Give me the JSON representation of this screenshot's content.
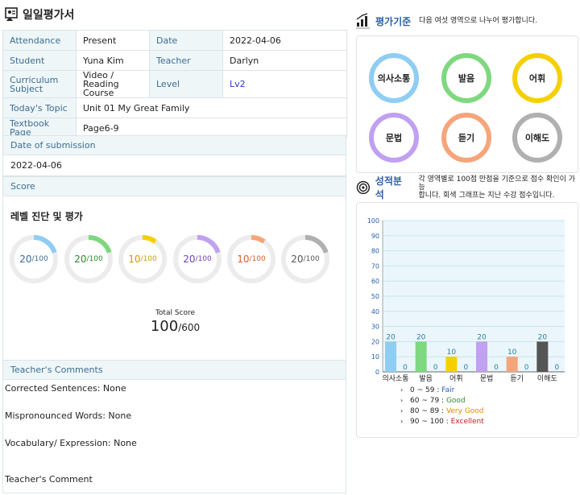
{
  "page_title": "일일평가서",
  "info": {
    "attendance_label": "Attendance",
    "attendance_value": "Present",
    "date_label": "Date",
    "date_value": "2022-04-06",
    "student_label": "Student",
    "student_value": "Yuna Kim",
    "teacher_label": "Teacher",
    "teacher_value": "Darlyn",
    "subject_label_1": "Curriculum",
    "subject_label_2": "Subject",
    "subject_value_1": "Video / Reading",
    "subject_value_2": "Course",
    "level_label": "Level",
    "level_value": "Lv2",
    "topic_label": "Today's Topic",
    "topic_value": "Unit 01 My Great Family",
    "textbook_label": "Textbook Page",
    "textbook_value": "Page6-9"
  },
  "submission": {
    "label": "Date of submission",
    "value": "2022-04-06"
  },
  "score": {
    "label": "Score",
    "title": "레벨 진단 및 평가",
    "donuts": [
      {
        "value": 20,
        "max": "/100",
        "color": "#8fcdf3",
        "text_color": "#3d6d92"
      },
      {
        "value": 20,
        "max": "/100",
        "color": "#7fd87f",
        "text_color": "#2f8a2f"
      },
      {
        "value": 10,
        "max": "/100",
        "color": "#f5d000",
        "text_color": "#d09a00"
      },
      {
        "value": 20,
        "max": "/100",
        "color": "#c0a0f0",
        "text_color": "#6a42b8"
      },
      {
        "value": 10,
        "max": "/100",
        "color": "#f5a57a",
        "text_color": "#d06030"
      },
      {
        "value": 20,
        "max": "/100",
        "color": "#b0b0b0",
        "text_color": "#555555"
      }
    ],
    "total_label": "Total Score",
    "total_value": "100",
    "total_max": "/600"
  },
  "comments": {
    "label": "Teacher's Comments",
    "corrected": "Corrected Sentences: None",
    "mispronounced": "Mispronounced Words: None",
    "vocabulary": "Vocabulary/ Expression: None",
    "teacher_comment": "Teacher's Comment"
  },
  "criteria": {
    "title": "평가기준",
    "desc": "다음 여섯 영역으로 나누어 평가합니다.",
    "items": [
      {
        "label": "의사소통",
        "color": "#8fcdf3"
      },
      {
        "label": "발음",
        "color": "#7fd87f"
      },
      {
        "label": "어휘",
        "color": "#f5d000"
      },
      {
        "label": "문법",
        "color": "#c0a0f0"
      },
      {
        "label": "듣기",
        "color": "#f5a57a"
      },
      {
        "label": "이해도",
        "color": "#b0b0b0"
      }
    ]
  },
  "analysis": {
    "title": "성적분석",
    "desc_1": "각 영역별로 100점 만점을 기준으로 점수 확인이 가능",
    "desc_2": "합니다. 회색 그래프는 지난 수강 점수입니다."
  },
  "chart_data": {
    "type": "bar",
    "categories": [
      "의사소통",
      "발음",
      "어휘",
      "문법",
      "듣기",
      "이해도"
    ],
    "series": [
      {
        "values": [
          20,
          20,
          10,
          20,
          10,
          20
        ],
        "colors": [
          "#8fcdf3",
          "#7fd87f",
          "#f5d000",
          "#c0a0f0",
          "#f5a57a",
          "#555555"
        ]
      },
      {
        "values": [
          0,
          0,
          0,
          0,
          0,
          0
        ]
      }
    ],
    "ylim": [
      0,
      100
    ],
    "yticks": [
      0,
      10,
      20,
      30,
      40,
      50,
      60,
      70,
      80,
      90,
      100
    ],
    "grid": true,
    "legend": [
      {
        "range": "0 ~  59",
        "label": "Fair",
        "color": "#2b5ea7"
      },
      {
        "range": "60 ~  79",
        "label": "Good",
        "color": "#2f8a2f"
      },
      {
        "range": "80 ~  89",
        "label": "Very Good",
        "color": "#e08a00"
      },
      {
        "range": "90 ~ 100",
        "label": "Excellent",
        "color": "#c02020"
      }
    ],
    "legend_marker": "›",
    "legend_separator": ":"
  }
}
